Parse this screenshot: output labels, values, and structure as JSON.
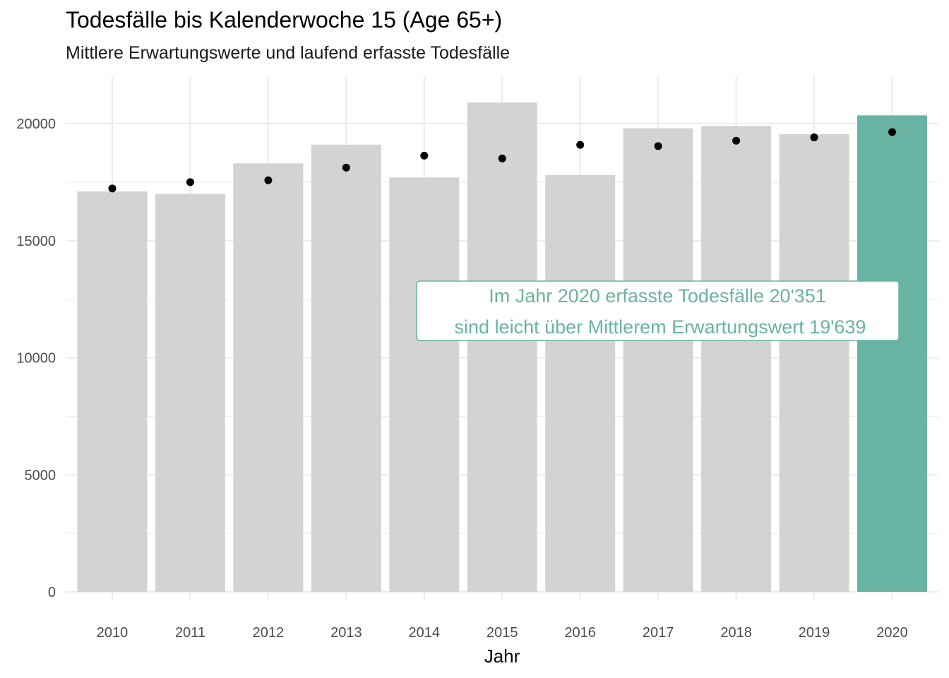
{
  "chart_data": {
    "type": "bar",
    "title": "Todesfälle bis Kalenderwoche 15 (Age 65+)",
    "subtitle": "Mittlere Erwartungswerte und laufend erfasste Todesfälle",
    "xlabel": "Jahr",
    "ylabel": "",
    "categories": [
      "2010",
      "2011",
      "2012",
      "2013",
      "2014",
      "2015",
      "2016",
      "2017",
      "2018",
      "2019",
      "2020"
    ],
    "series": [
      {
        "values": [
          17100,
          17000,
          18300,
          19100,
          17700,
          20900,
          17800,
          19800,
          19900,
          19550,
          20351
        ]
      },
      {
        "values": [
          17230,
          17500,
          17580,
          18120,
          18630,
          18510,
          19090,
          19040,
          19270,
          19410,
          19639
        ]
      }
    ],
    "ylim": [
      0,
      20000
    ],
    "yticks": [
      0,
      5000,
      10000,
      15000,
      20000
    ],
    "grid": true,
    "legend": "none",
    "colors": {
      "bar": "#d3d3d3",
      "highlight": "#69b3a2",
      "point": "#000000",
      "grid": "#ebebeb",
      "annotation": "#69b3a2"
    },
    "highlight_category": "2020",
    "annotation": {
      "line1": "Im Jahr 2020 erfasste Todesfälle 20'351",
      "line2": "sind leicht über Mittlerem Erwartungswert 19'639"
    }
  }
}
